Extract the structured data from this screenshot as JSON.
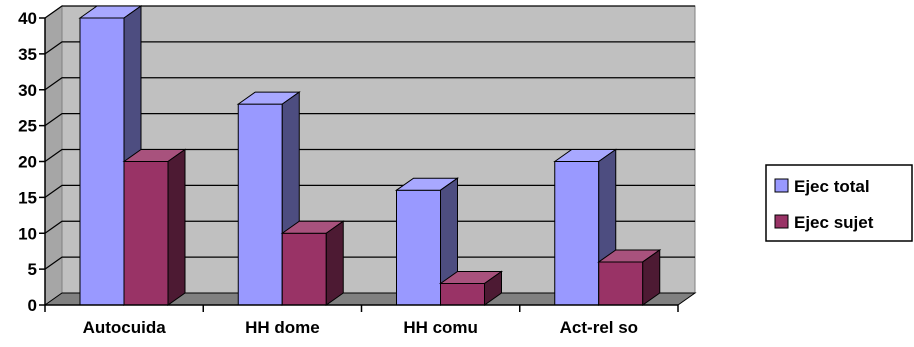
{
  "chart_data": {
    "type": "bar",
    "style": "3d-clustered-column",
    "categories": [
      "Autocuida",
      "HH dome",
      "HH comu",
      "Act-rel so"
    ],
    "series": [
      {
        "name": "Ejec total",
        "values": [
          40,
          28,
          16,
          20
        ],
        "color": "#9999ff"
      },
      {
        "name": "Ejec sujet",
        "values": [
          20,
          10,
          3,
          6
        ],
        "color": "#993366"
      }
    ],
    "ylim": [
      0,
      40
    ],
    "yticks": [
      0,
      5,
      10,
      15,
      20,
      25,
      30,
      35,
      40
    ],
    "grid": true,
    "legend_position": "right",
    "plot_background": "#c0c0c0"
  }
}
